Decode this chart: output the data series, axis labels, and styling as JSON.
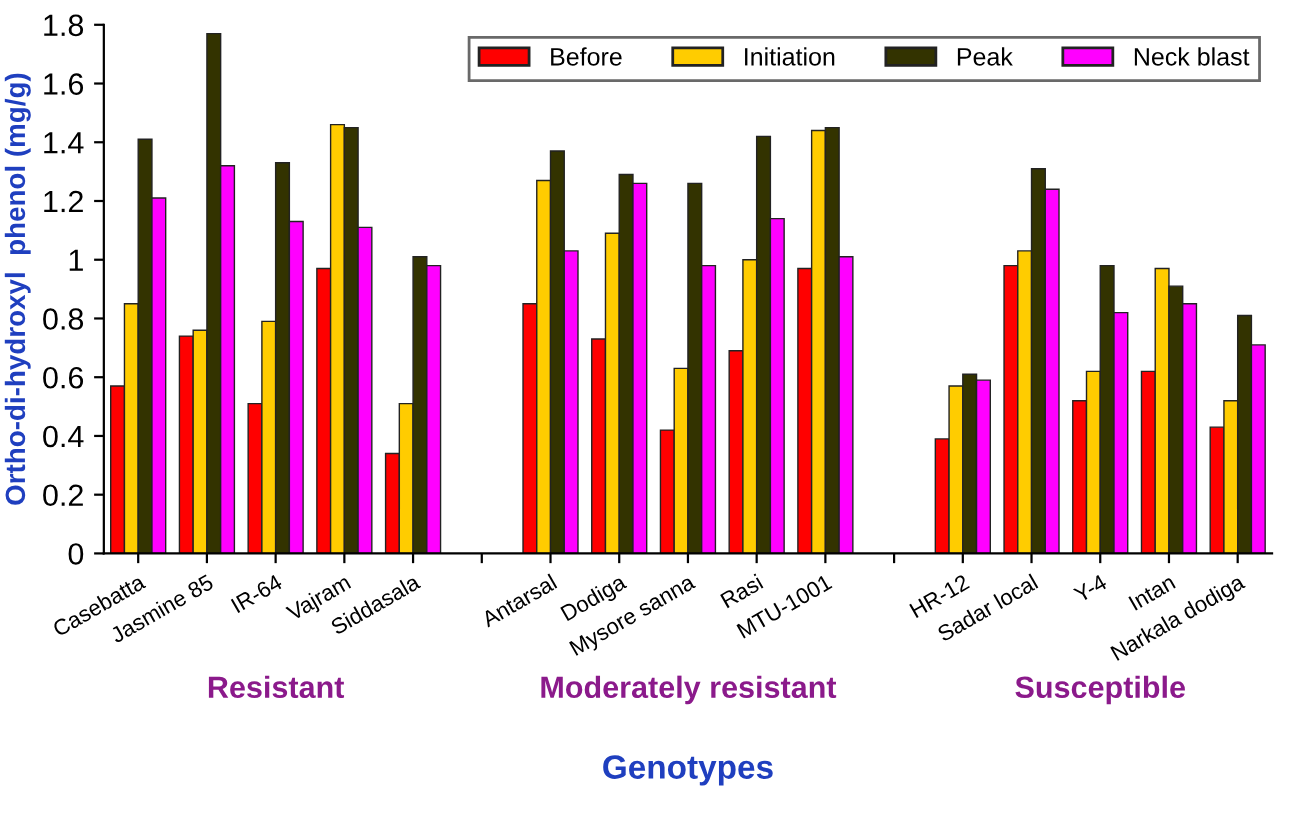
{
  "chart_data": {
    "type": "bar",
    "xlabel": "Genotypes",
    "ylabel": "Ortho-di-hydroxyl  phenol (mg/g)",
    "categories": [
      "Casebatta",
      "Jasmine 85",
      "IR-64",
      "Vajram",
      "Siddasala",
      null,
      "Antarsal",
      "Dodiga",
      "Mysore sanna",
      "Rasi",
      "MTU-1001",
      null,
      "HR-12",
      "Sadar local",
      "Y-4",
      "Intan",
      "Narkala dodiga"
    ],
    "series": [
      {
        "name": "Before",
        "color": "#ff0000",
        "values": [
          0.57,
          0.74,
          0.51,
          0.97,
          0.34,
          null,
          0.85,
          0.73,
          0.42,
          0.69,
          0.97,
          null,
          0.39,
          0.98,
          0.52,
          0.62,
          0.43
        ]
      },
      {
        "name": "Initiation",
        "color": "#ffcc00",
        "values": [
          0.85,
          0.76,
          0.79,
          1.46,
          0.51,
          null,
          1.27,
          1.09,
          0.63,
          1.0,
          1.44,
          null,
          0.57,
          1.03,
          0.62,
          0.97,
          0.52
        ]
      },
      {
        "name": "Peak",
        "color": "#333300",
        "values": [
          1.41,
          1.77,
          1.33,
          1.45,
          1.01,
          null,
          1.37,
          1.29,
          1.26,
          1.42,
          1.45,
          null,
          0.61,
          1.31,
          0.98,
          0.91,
          0.81
        ]
      },
      {
        "name": "Neck blast",
        "color": "#ff00ff",
        "values": [
          1.21,
          1.32,
          1.13,
          1.11,
          0.98,
          null,
          1.03,
          1.26,
          0.98,
          1.14,
          1.01,
          null,
          0.59,
          1.24,
          0.82,
          0.85,
          0.71
        ]
      }
    ],
    "ylim": [
      0,
      1.8
    ],
    "yticks": [
      0,
      0.2,
      0.4,
      0.6,
      0.8,
      1,
      1.2,
      1.4,
      1.6,
      1.8
    ],
    "grid": false,
    "legend": "top right",
    "annotations": [
      "Resistant",
      "Moderately resistant",
      "Susceptible"
    ]
  }
}
